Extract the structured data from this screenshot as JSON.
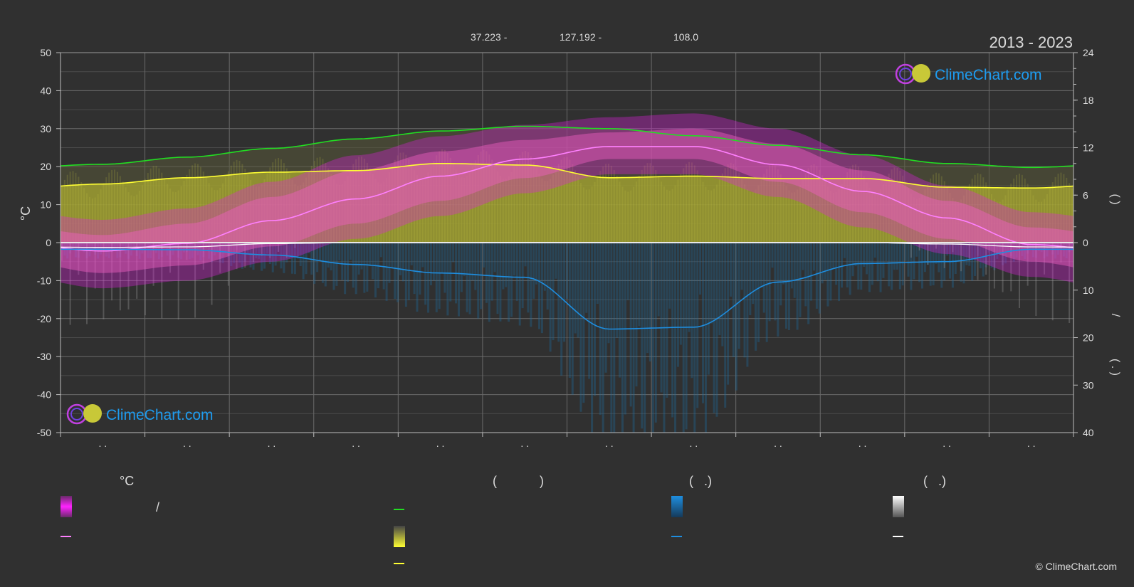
{
  "header": {
    "years": "2013 - 2023",
    "coord_lat": "37.223 -",
    "coord_lon": "127.192 -",
    "elevation": "108.0"
  },
  "brand": {
    "logo_text": "ClimeChart.com",
    "copyright": "© ClimeChart.com"
  },
  "axes": {
    "left_unit": "°C",
    "left_ticks": [
      "50",
      "40",
      "30",
      "20",
      "10",
      "0",
      "-10",
      "-20",
      "-30",
      "-40",
      "-50"
    ],
    "right_top_ticks": [
      "24",
      "18",
      "12",
      "6",
      "0"
    ],
    "right_bottom_ticks": [
      "10",
      "20",
      "30",
      "40"
    ],
    "month_labels": [
      ". .",
      ". .",
      ". .",
      ". .",
      ". .",
      ". .",
      ". .",
      ". .",
      ". .",
      ". .",
      ". .",
      ". ."
    ],
    "right_label_top": "(    )",
    "right_label_mid": "/",
    "right_label_bottom": "( . )"
  },
  "legend": {
    "col1_title": "°C",
    "col1_item1_sep": "/",
    "col2_title": "(            )",
    "col3_title": "(   .)",
    "col4_title": "(   .)"
  },
  "colors": {
    "background": "#303030",
    "temp_band": "#e020e0",
    "temp_mean": "#ff80ff",
    "daylight": "#22dd22",
    "sunshine_band": "#b8b830",
    "sunshine_line": "#ffff33",
    "rain": "#1e8ee0",
    "snow": "#ffffff"
  },
  "chart_data": {
    "type": "area",
    "years": "2013 - 2023",
    "x": [
      0.5,
      1.5,
      2.5,
      3.5,
      4.5,
      5.5,
      6.5,
      7.5,
      8.5,
      9.5,
      10.5,
      11.5
    ],
    "series": [
      {
        "key": "temp_mean",
        "axis": "temperature_c",
        "values": [
          -2.2,
          -0.2,
          5.8,
          11.5,
          17.5,
          22.0,
          25.3,
          25.3,
          20.5,
          13.5,
          6.5,
          -0.5
        ]
      },
      {
        "key": "temp_max_band",
        "axis": "temperature_c",
        "values": [
          2,
          5,
          12,
          19,
          24,
          27,
          29,
          30,
          26,
          19,
          11,
          4
        ]
      },
      {
        "key": "temp_min_band",
        "axis": "temperature_c",
        "values": [
          -8,
          -6,
          -1,
          5,
          11,
          17,
          22,
          22,
          16,
          8,
          1,
          -5
        ]
      },
      {
        "key": "daylight_hours",
        "axis": "hours",
        "values": [
          9.9,
          10.8,
          11.9,
          13.1,
          14.1,
          14.7,
          14.4,
          13.5,
          12.3,
          11.1,
          10.0,
          9.5
        ]
      },
      {
        "key": "sunshine_hours",
        "axis": "hours",
        "values": [
          7.4,
          8.2,
          8.9,
          9.1,
          10.0,
          9.8,
          8.2,
          8.4,
          8.1,
          8.1,
          7.0,
          6.9
        ]
      },
      {
        "key": "precip_mm",
        "axis": "precip_mm",
        "values": [
          1.4,
          1.5,
          2.6,
          4.6,
          6.4,
          7.3,
          18.2,
          17.8,
          8.3,
          4.4,
          4.0,
          1.4
        ]
      },
      {
        "key": "snow_mm",
        "axis": "precip_mm",
        "values": [
          1.0,
          0.9,
          0.2,
          0,
          0,
          0,
          0,
          0,
          0,
          0,
          0.3,
          0.9
        ]
      }
    ],
    "axes_ranges": {
      "temperature_c": [
        -50,
        50
      ],
      "hours": [
        0,
        24
      ],
      "precip_mm": [
        0,
        40
      ]
    },
    "grid": true
  }
}
